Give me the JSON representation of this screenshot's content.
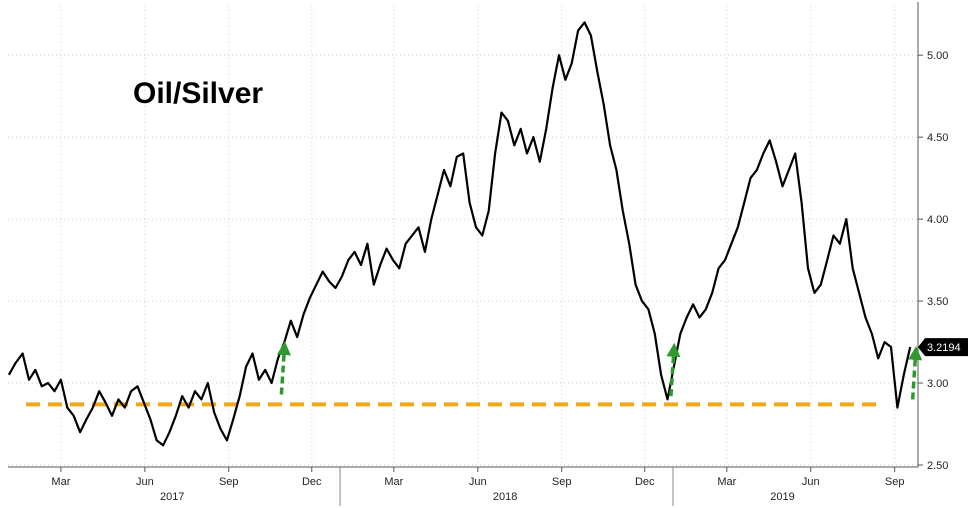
{
  "chart_data": {
    "type": "line",
    "title": "Oil/Silver",
    "xlabel": "",
    "ylabel": "",
    "x_range": [
      "2017-01-02",
      "2019-09-20"
    ],
    "ylim": [
      2.5,
      5.3
    ],
    "grid": true,
    "y_ticks": [
      "2.50",
      "3.00",
      "3.50",
      "4.00",
      "4.50",
      "5.00"
    ],
    "x_ticks": [
      {
        "label": "Mar",
        "date": "2017-03-01"
      },
      {
        "label": "Jun",
        "date": "2017-06-01"
      },
      {
        "label": "Sep",
        "date": "2017-09-01"
      },
      {
        "label": "Dec",
        "date": "2017-12-01"
      },
      {
        "label": "Mar",
        "date": "2018-03-01"
      },
      {
        "label": "Jun",
        "date": "2018-06-01"
      },
      {
        "label": "Sep",
        "date": "2018-09-01"
      },
      {
        "label": "Dec",
        "date": "2018-12-01"
      },
      {
        "label": "Mar",
        "date": "2019-03-01"
      },
      {
        "label": "Jun",
        "date": "2019-06-01"
      },
      {
        "label": "Sep",
        "date": "2019-09-01"
      }
    ],
    "year_labels": [
      {
        "label": "2017",
        "date": "2017-07-01"
      },
      {
        "label": "2018",
        "date": "2018-07-01"
      },
      {
        "label": "2019",
        "date": "2019-05-01"
      }
    ],
    "series": [
      {
        "color": "#000000",
        "points": [
          [
            "2017-01-03",
            3.05
          ],
          [
            "2017-01-10",
            3.12
          ],
          [
            "2017-01-18",
            3.18
          ],
          [
            "2017-01-25",
            3.02
          ],
          [
            "2017-02-01",
            3.08
          ],
          [
            "2017-02-08",
            2.98
          ],
          [
            "2017-02-15",
            3.0
          ],
          [
            "2017-02-22",
            2.95
          ],
          [
            "2017-03-01",
            3.02
          ],
          [
            "2017-03-08",
            2.85
          ],
          [
            "2017-03-15",
            2.8
          ],
          [
            "2017-03-22",
            2.7
          ],
          [
            "2017-03-29",
            2.78
          ],
          [
            "2017-04-05",
            2.85
          ],
          [
            "2017-04-12",
            2.95
          ],
          [
            "2017-04-19",
            2.88
          ],
          [
            "2017-04-26",
            2.8
          ],
          [
            "2017-05-03",
            2.9
          ],
          [
            "2017-05-10",
            2.85
          ],
          [
            "2017-05-17",
            2.95
          ],
          [
            "2017-05-24",
            2.98
          ],
          [
            "2017-05-31",
            2.88
          ],
          [
            "2017-06-07",
            2.78
          ],
          [
            "2017-06-14",
            2.65
          ],
          [
            "2017-06-21",
            2.62
          ],
          [
            "2017-06-28",
            2.7
          ],
          [
            "2017-07-05",
            2.8
          ],
          [
            "2017-07-12",
            2.92
          ],
          [
            "2017-07-19",
            2.85
          ],
          [
            "2017-07-26",
            2.95
          ],
          [
            "2017-08-02",
            2.9
          ],
          [
            "2017-08-09",
            3.0
          ],
          [
            "2017-08-16",
            2.82
          ],
          [
            "2017-08-23",
            2.72
          ],
          [
            "2017-08-30",
            2.65
          ],
          [
            "2017-09-06",
            2.78
          ],
          [
            "2017-09-13",
            2.92
          ],
          [
            "2017-09-20",
            3.1
          ],
          [
            "2017-09-27",
            3.18
          ],
          [
            "2017-10-04",
            3.02
          ],
          [
            "2017-10-11",
            3.08
          ],
          [
            "2017-10-18",
            3.0
          ],
          [
            "2017-10-25",
            3.15
          ],
          [
            "2017-11-01",
            3.25
          ],
          [
            "2017-11-08",
            3.38
          ],
          [
            "2017-11-15",
            3.28
          ],
          [
            "2017-11-22",
            3.42
          ],
          [
            "2017-11-29",
            3.52
          ],
          [
            "2017-12-06",
            3.6
          ],
          [
            "2017-12-13",
            3.68
          ],
          [
            "2017-12-20",
            3.62
          ],
          [
            "2017-12-27",
            3.58
          ],
          [
            "2018-01-03",
            3.65
          ],
          [
            "2018-01-10",
            3.75
          ],
          [
            "2018-01-17",
            3.8
          ],
          [
            "2018-01-24",
            3.72
          ],
          [
            "2018-01-31",
            3.85
          ],
          [
            "2018-02-07",
            3.6
          ],
          [
            "2018-02-14",
            3.72
          ],
          [
            "2018-02-21",
            3.82
          ],
          [
            "2018-02-28",
            3.75
          ],
          [
            "2018-03-07",
            3.7
          ],
          [
            "2018-03-14",
            3.85
          ],
          [
            "2018-03-21",
            3.9
          ],
          [
            "2018-03-28",
            3.95
          ],
          [
            "2018-04-04",
            3.8
          ],
          [
            "2018-04-11",
            4.0
          ],
          [
            "2018-04-18",
            4.15
          ],
          [
            "2018-04-25",
            4.3
          ],
          [
            "2018-05-02",
            4.2
          ],
          [
            "2018-05-09",
            4.38
          ],
          [
            "2018-05-16",
            4.4
          ],
          [
            "2018-05-23",
            4.1
          ],
          [
            "2018-05-30",
            3.95
          ],
          [
            "2018-06-06",
            3.9
          ],
          [
            "2018-06-13",
            4.05
          ],
          [
            "2018-06-20",
            4.4
          ],
          [
            "2018-06-27",
            4.65
          ],
          [
            "2018-07-04",
            4.6
          ],
          [
            "2018-07-11",
            4.45
          ],
          [
            "2018-07-18",
            4.55
          ],
          [
            "2018-07-25",
            4.4
          ],
          [
            "2018-08-01",
            4.5
          ],
          [
            "2018-08-08",
            4.35
          ],
          [
            "2018-08-15",
            4.55
          ],
          [
            "2018-08-22",
            4.8
          ],
          [
            "2018-08-29",
            5.0
          ],
          [
            "2018-09-05",
            4.85
          ],
          [
            "2018-09-12",
            4.95
          ],
          [
            "2018-09-19",
            5.15
          ],
          [
            "2018-09-26",
            5.2
          ],
          [
            "2018-10-03",
            5.12
          ],
          [
            "2018-10-10",
            4.9
          ],
          [
            "2018-10-17",
            4.7
          ],
          [
            "2018-10-24",
            4.45
          ],
          [
            "2018-10-31",
            4.3
          ],
          [
            "2018-11-07",
            4.05
          ],
          [
            "2018-11-14",
            3.85
          ],
          [
            "2018-11-21",
            3.6
          ],
          [
            "2018-11-28",
            3.5
          ],
          [
            "2018-12-05",
            3.45
          ],
          [
            "2018-12-12",
            3.3
          ],
          [
            "2018-12-19",
            3.05
          ],
          [
            "2018-12-26",
            2.9
          ],
          [
            "2019-01-02",
            3.1
          ],
          [
            "2019-01-09",
            3.3
          ],
          [
            "2019-01-16",
            3.4
          ],
          [
            "2019-01-23",
            3.48
          ],
          [
            "2019-01-30",
            3.4
          ],
          [
            "2019-02-06",
            3.45
          ],
          [
            "2019-02-13",
            3.55
          ],
          [
            "2019-02-20",
            3.7
          ],
          [
            "2019-02-27",
            3.75
          ],
          [
            "2019-03-06",
            3.85
          ],
          [
            "2019-03-13",
            3.95
          ],
          [
            "2019-03-20",
            4.1
          ],
          [
            "2019-03-27",
            4.25
          ],
          [
            "2019-04-03",
            4.3
          ],
          [
            "2019-04-10",
            4.4
          ],
          [
            "2019-04-17",
            4.48
          ],
          [
            "2019-04-24",
            4.35
          ],
          [
            "2019-05-01",
            4.2
          ],
          [
            "2019-05-08",
            4.3
          ],
          [
            "2019-05-15",
            4.4
          ],
          [
            "2019-05-22",
            4.1
          ],
          [
            "2019-05-29",
            3.7
          ],
          [
            "2019-06-05",
            3.55
          ],
          [
            "2019-06-12",
            3.6
          ],
          [
            "2019-06-19",
            3.75
          ],
          [
            "2019-06-26",
            3.9
          ],
          [
            "2019-07-03",
            3.85
          ],
          [
            "2019-07-10",
            4.0
          ],
          [
            "2019-07-17",
            3.7
          ],
          [
            "2019-07-24",
            3.55
          ],
          [
            "2019-07-31",
            3.4
          ],
          [
            "2019-08-07",
            3.3
          ],
          [
            "2019-08-14",
            3.15
          ],
          [
            "2019-08-21",
            3.25
          ],
          [
            "2019-08-28",
            3.22
          ],
          [
            "2019-09-04",
            2.85
          ],
          [
            "2019-09-11",
            3.05
          ],
          [
            "2019-09-18",
            3.22
          ]
        ]
      }
    ],
    "support_line": {
      "value": 2.87,
      "color": "#f0a818"
    },
    "arrows": [
      {
        "date": "2017-11-01",
        "from": 2.93,
        "to": 3.25
      },
      {
        "date": "2019-01-02",
        "from": 2.92,
        "to": 3.24
      },
      {
        "date": "2019-09-24",
        "from": 2.9,
        "to": 3.22
      }
    ],
    "arrow_color": "#2e9a2e",
    "last_value": {
      "label": "3.2194",
      "value": 3.2194
    }
  }
}
